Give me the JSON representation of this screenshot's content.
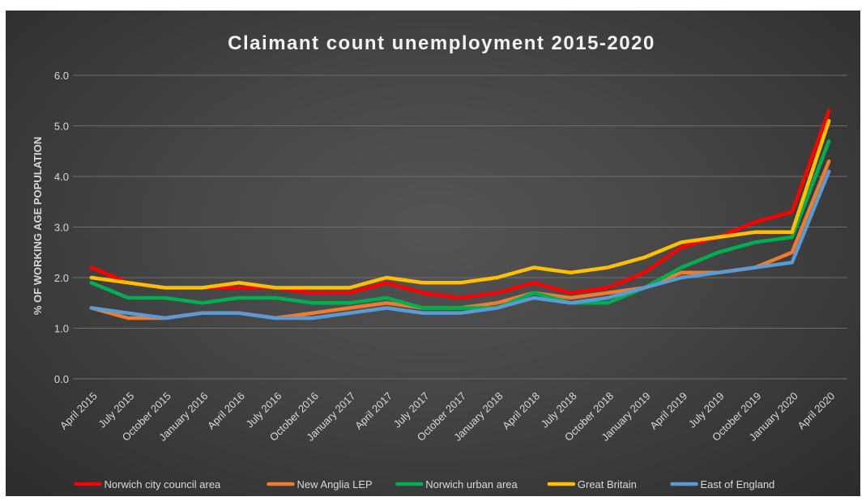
{
  "chart_data": {
    "type": "line",
    "title": "Claimant count unemployment 2015-2020",
    "xlabel": "",
    "ylabel": "% OF WORKING AGE POPULATION",
    "ylim": [
      0,
      6
    ],
    "yticks": [
      "0.0",
      "1.0",
      "2.0",
      "3.0",
      "4.0",
      "5.0",
      "6.0"
    ],
    "grid": true,
    "legend_position": "bottom",
    "categories": [
      "April 2015",
      "July 2015",
      "October 2015",
      "January 2016",
      "April 2016",
      "July 2016",
      "October 2016",
      "January 2017",
      "April 2017",
      "July 2017",
      "October 2017",
      "January 2018",
      "April 2018",
      "July 2018",
      "October 2018",
      "January 2019",
      "April 2019",
      "July 2019",
      "October 2019",
      "January 2020",
      "April 2020"
    ],
    "series": [
      {
        "name": "Norwich city council area",
        "color": "#ff0000",
        "values": [
          2.2,
          1.9,
          1.8,
          1.8,
          1.8,
          1.8,
          1.7,
          1.7,
          1.9,
          1.7,
          1.6,
          1.7,
          1.9,
          1.7,
          1.8,
          2.1,
          2.6,
          2.8,
          3.1,
          3.3,
          5.3
        ]
      },
      {
        "name": "New Anglia LEP",
        "color": "#ed7d31",
        "values": [
          1.4,
          1.2,
          1.2,
          1.3,
          1.3,
          1.2,
          1.3,
          1.4,
          1.5,
          1.4,
          1.4,
          1.5,
          1.7,
          1.6,
          1.7,
          1.8,
          2.1,
          2.1,
          2.2,
          2.5,
          4.3
        ]
      },
      {
        "name": "Norwich urban area",
        "color": "#00b050",
        "values": [
          1.9,
          1.6,
          1.6,
          1.5,
          1.6,
          1.6,
          1.5,
          1.5,
          1.6,
          1.4,
          1.4,
          1.4,
          1.7,
          1.5,
          1.5,
          1.8,
          2.2,
          2.5,
          2.7,
          2.8,
          4.7
        ]
      },
      {
        "name": "Great Britain",
        "color": "#ffc000",
        "values": [
          2.0,
          1.9,
          1.8,
          1.8,
          1.9,
          1.8,
          1.8,
          1.8,
          2.0,
          1.9,
          1.9,
          2.0,
          2.2,
          2.1,
          2.2,
          2.4,
          2.7,
          2.8,
          2.9,
          2.9,
          5.1
        ]
      },
      {
        "name": "East of England",
        "color": "#5b9bd5",
        "values": [
          1.4,
          1.3,
          1.2,
          1.3,
          1.3,
          1.2,
          1.2,
          1.3,
          1.4,
          1.3,
          1.3,
          1.4,
          1.6,
          1.5,
          1.6,
          1.8,
          2.0,
          2.1,
          2.2,
          2.3,
          4.1
        ]
      }
    ]
  }
}
